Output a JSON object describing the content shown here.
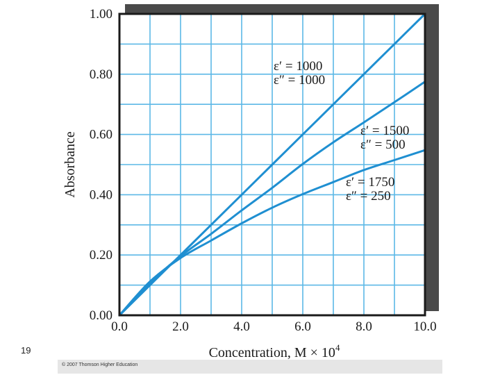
{
  "slide": {
    "number": "19"
  },
  "footer": {
    "copyright": "© 2007 Thomson Higher Education"
  },
  "chart_data": {
    "type": "line",
    "xlabel": "Concentration, M × 10",
    "xlabel_sup": "4",
    "ylabel": "Absorbance",
    "xlim": [
      0,
      10
    ],
    "ylim": [
      0,
      1
    ],
    "grid": true,
    "line_color": "#1f8fd1",
    "grid_color": "#5cb8e6",
    "x_ticks": [
      "0.0",
      "2.0",
      "4.0",
      "6.0",
      "8.0",
      "10.0"
    ],
    "y_ticks": [
      "0.00",
      "0.20",
      "0.40",
      "0.60",
      "0.80",
      "1.00"
    ],
    "x": [
      0,
      1,
      2,
      3,
      4,
      5,
      6,
      7,
      8,
      9,
      10
    ],
    "series": [
      {
        "values": [
          0,
          0.1,
          0.2,
          0.3,
          0.4,
          0.5,
          0.6,
          0.7,
          0.8,
          0.9,
          1.0
        ]
      },
      {
        "values": [
          0,
          0.108,
          0.196,
          0.27,
          0.348,
          0.423,
          0.502,
          0.574,
          0.64,
          0.707,
          0.775
        ]
      },
      {
        "values": [
          0,
          0.112,
          0.19,
          0.248,
          0.305,
          0.357,
          0.402,
          0.442,
          0.482,
          0.515,
          0.548
        ]
      }
    ],
    "annotations": [
      {
        "lines": [
          "ε′ = 1000",
          "ε″ = 1000"
        ]
      },
      {
        "lines": [
          "ε′ = 1500",
          "ε″ = 500"
        ]
      },
      {
        "lines": [
          "ε′ = 1750",
          "ε″ = 250"
        ]
      }
    ]
  }
}
